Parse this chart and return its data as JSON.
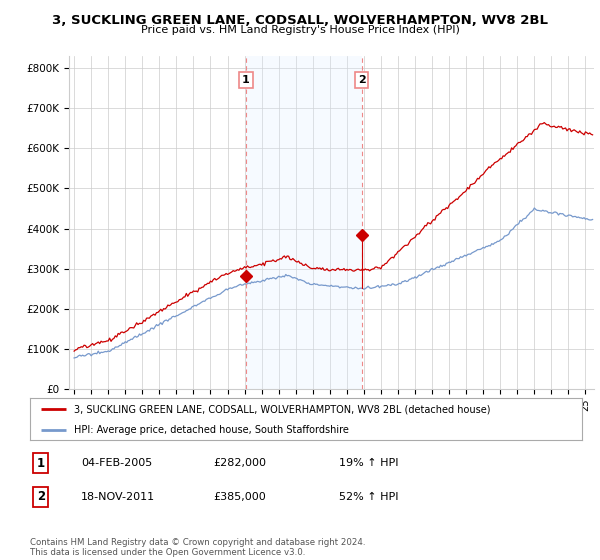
{
  "title": "3, SUCKLING GREEN LANE, CODSALL, WOLVERHAMPTON, WV8 2BL",
  "subtitle": "Price paid vs. HM Land Registry's House Price Index (HPI)",
  "ylabel_ticks": [
    "£0",
    "£100K",
    "£200K",
    "£300K",
    "£400K",
    "£500K",
    "£600K",
    "£700K",
    "£800K"
  ],
  "ytick_values": [
    0,
    100000,
    200000,
    300000,
    400000,
    500000,
    600000,
    700000,
    800000
  ],
  "ylim": [
    0,
    830000
  ],
  "xlim_start": 1994.7,
  "xlim_end": 2025.5,
  "transaction1_x": 2005.08,
  "transaction1_y": 282000,
  "transaction2_x": 2011.88,
  "transaction2_y": 385000,
  "vline1_x": 2005.08,
  "vline2_x": 2011.88,
  "shade_xmin": 2005.08,
  "shade_xmax": 2011.88,
  "legend_line1": "3, SUCKLING GREEN LANE, CODSALL, WOLVERHAMPTON, WV8 2BL (detached house)",
  "legend_line2": "HPI: Average price, detached house, South Staffordshire",
  "table_row1_num": "1",
  "table_row1_date": "04-FEB-2005",
  "table_row1_price": "£282,000",
  "table_row1_hpi": "19% ↑ HPI",
  "table_row2_num": "2",
  "table_row2_date": "18-NOV-2011",
  "table_row2_price": "£385,000",
  "table_row2_hpi": "52% ↑ HPI",
  "footnote": "Contains HM Land Registry data © Crown copyright and database right 2024.\nThis data is licensed under the Open Government Licence v3.0.",
  "price_line_color": "#cc0000",
  "hpi_line_color": "#7799cc",
  "shade_color": "#ddeeff",
  "vline_color": "#ee8888",
  "background_color": "#ffffff",
  "grid_color": "#cccccc"
}
